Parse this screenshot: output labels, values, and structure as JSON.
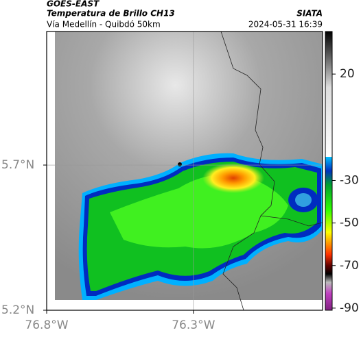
{
  "header": {
    "title": "GOES-EAST",
    "subtitle": "Temperatura de Brillo CH13",
    "region": "Vía Medellín - Quibdó 50km",
    "source": "SIATA",
    "timestamp": "2024-05-31 16:39"
  },
  "map": {
    "xlim": [
      -76.8,
      -75.86
    ],
    "ylim": [
      5.2,
      6.16
    ],
    "xticks": [
      {
        "value": -76.8,
        "label": "76.8°W"
      },
      {
        "value": -76.3,
        "label": "76.3°W"
      }
    ],
    "yticks": [
      {
        "value": 5.7,
        "label": "5.7°N"
      },
      {
        "value": 5.2,
        "label": "5.2°N"
      }
    ]
  },
  "colorbar": {
    "clim": [
      40,
      -91
    ],
    "ticks": [
      20,
      -30,
      -50,
      -70,
      -90
    ]
  }
}
